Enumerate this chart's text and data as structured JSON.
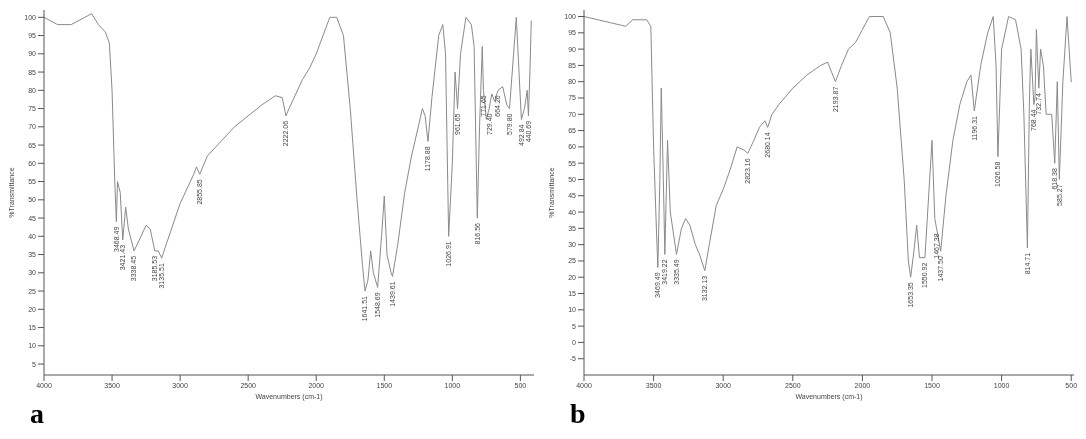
{
  "chart_data": [
    {
      "type": "line",
      "title": "a",
      "xlabel": "Wavenumbers (cm-1)",
      "ylabel": "%Transmittance",
      "color": "#8a8a8a",
      "x": [
        4000,
        3900,
        3800,
        3700,
        3650,
        3600,
        3550,
        3520,
        3500,
        3480,
        3468.49,
        3460,
        3440,
        3421.43,
        3400,
        3380,
        3338.45,
        3300,
        3250,
        3220,
        3185.53,
        3160,
        3135.51,
        3100,
        3000,
        2900,
        2880,
        2855.85,
        2800,
        2700,
        2600,
        2500,
        2400,
        2300,
        2250,
        2222.06,
        2200,
        2100,
        2050,
        2000,
        1950,
        1900,
        1850,
        1800,
        1750,
        1700,
        1660,
        1641.51,
        1620,
        1600,
        1580,
        1548.69,
        1520,
        1500,
        1480,
        1450,
        1439.61,
        1400,
        1350,
        1300,
        1250,
        1220,
        1200,
        1178.88,
        1150,
        1100,
        1070,
        1050,
        1026.91,
        1000,
        980,
        961.65,
        940,
        900,
        860,
        840,
        816.56,
        800,
        780,
        771.65,
        750,
        729.4,
        710,
        690,
        664.26,
        630,
        600,
        579.8,
        550,
        530,
        510,
        492.84,
        470,
        450,
        440.69,
        430,
        420
      ],
      "values": [
        100,
        98,
        98,
        100,
        101,
        98,
        96,
        93,
        80,
        55,
        44,
        55,
        52,
        39,
        48,
        42,
        36,
        39,
        43,
        42,
        36,
        36,
        34,
        38,
        49,
        57,
        59,
        57,
        62,
        66,
        70,
        73,
        76,
        78.5,
        78,
        73,
        75,
        83,
        86,
        90,
        95,
        100,
        100,
        95,
        75,
        50,
        32,
        25,
        28,
        36,
        30,
        26,
        40,
        51,
        35,
        30,
        29,
        38,
        52,
        62,
        70,
        75,
        73,
        66,
        78,
        95,
        98,
        90,
        40,
        60,
        85,
        75,
        90,
        100,
        98,
        92,
        45,
        70,
        92,
        80,
        72,
        75,
        79,
        77,
        80,
        81,
        76,
        75,
        90,
        100,
        85,
        72,
        75,
        80,
        73,
        85,
        99
      ],
      "xlim": [
        4000,
        400
      ],
      "ylim": [
        2,
        102
      ],
      "xticks": [
        4000,
        3500,
        3000,
        2500,
        2000,
        1500,
        1000,
        500
      ],
      "yticks": [
        5,
        10,
        15,
        20,
        25,
        30,
        35,
        40,
        45,
        50,
        55,
        60,
        65,
        70,
        75,
        80,
        85,
        90,
        95,
        100
      ],
      "annotations": [
        {
          "text": "3468.49",
          "x": 3468.49,
          "y": 44
        },
        {
          "text": "3421.43",
          "x": 3421.43,
          "y": 39
        },
        {
          "text": "3338.45",
          "x": 3338.45,
          "y": 36
        },
        {
          "text": "3185.53",
          "x": 3185.53,
          "y": 36
        },
        {
          "text": "3135.51",
          "x": 3135.51,
          "y": 34
        },
        {
          "text": "2855.85",
          "x": 2855.85,
          "y": 57
        },
        {
          "text": "2222.06",
          "x": 2222.06,
          "y": 73
        },
        {
          "text": "1641.51",
          "x": 1641.51,
          "y": 25
        },
        {
          "text": "1548.69",
          "x": 1548.69,
          "y": 26
        },
        {
          "text": "1439.61",
          "x": 1439.61,
          "y": 29
        },
        {
          "text": "1178.88",
          "x": 1178.88,
          "y": 66
        },
        {
          "text": "1026.91",
          "x": 1026.91,
          "y": 40
        },
        {
          "text": "961.65",
          "x": 961.65,
          "y": 75
        },
        {
          "text": "816.56",
          "x": 816.56,
          "y": 45
        },
        {
          "text": "771.65",
          "x": 771.65,
          "y": 80
        },
        {
          "text": "729.40",
          "x": 729.4,
          "y": 75
        },
        {
          "text": "664.26",
          "x": 664.26,
          "y": 80
        },
        {
          "text": "579.80",
          "x": 579.8,
          "y": 75
        },
        {
          "text": "492.84",
          "x": 492.84,
          "y": 72
        },
        {
          "text": "440.69",
          "x": 440.69,
          "y": 73
        }
      ]
    },
    {
      "type": "line",
      "title": "b",
      "xlabel": "Wavenumbers (cm-1)",
      "ylabel": "%Transmittance",
      "color": "#8a8a8a",
      "x": [
        4000,
        3900,
        3800,
        3700,
        3650,
        3550,
        3520,
        3500,
        3480,
        3469.49,
        3455,
        3445,
        3430,
        3419.22,
        3400,
        3380,
        3335.49,
        3300,
        3270,
        3240,
        3200,
        3170,
        3132.13,
        3100,
        3050,
        3000,
        2950,
        2900,
        2850,
        2823.16,
        2780,
        2740,
        2700,
        2680.14,
        2650,
        2600,
        2500,
        2400,
        2300,
        2250,
        2193.87,
        2150,
        2100,
        2050,
        2000,
        1950,
        1850,
        1800,
        1750,
        1700,
        1670,
        1653.35,
        1630,
        1610,
        1590,
        1550.92,
        1500,
        1480,
        1467.38,
        1437.5,
        1400,
        1350,
        1300,
        1250,
        1220,
        1196.31,
        1150,
        1100,
        1060,
        1040,
        1026.58,
        1000,
        950,
        900,
        860,
        840,
        814.71,
        800,
        790,
        768.44,
        760,
        750,
        740,
        732.74,
        720,
        700,
        680,
        640,
        618.38,
        600,
        585.27,
        560,
        530,
        500
      ],
      "values": [
        100,
        99,
        98,
        97,
        99,
        99,
        97,
        60,
        35,
        23,
        50,
        78,
        50,
        27,
        62,
        40,
        27,
        35,
        38,
        36,
        30,
        27,
        22,
        30,
        42,
        47,
        53,
        60,
        59,
        58,
        62,
        66,
        68,
        66,
        70,
        73,
        78,
        82,
        85,
        86,
        80,
        85,
        90,
        92,
        96,
        100,
        100,
        95,
        78,
        50,
        25,
        20,
        28,
        36,
        26,
        26,
        62,
        38,
        35,
        28,
        45,
        62,
        73,
        80,
        82,
        71,
        85,
        95,
        100,
        85,
        57,
        90,
        100,
        99,
        90,
        70,
        29,
        75,
        90,
        73,
        75,
        96,
        85,
        78,
        90,
        85,
        70,
        70,
        55,
        80,
        50,
        80,
        100,
        80
      ],
      "xlim": [
        4000,
        480
      ],
      "ylim": [
        -10,
        102
      ],
      "xticks": [
        4000,
        3500,
        3000,
        2500,
        2000,
        1500,
        1000,
        500
      ],
      "yticks": [
        -5,
        0,
        5,
        10,
        15,
        20,
        25,
        30,
        35,
        40,
        45,
        50,
        55,
        60,
        65,
        70,
        75,
        80,
        85,
        90,
        95,
        100
      ],
      "annotations": [
        {
          "text": "3469.49",
          "x": 3469.49,
          "y": 23
        },
        {
          "text": "3419.22",
          "x": 3419.22,
          "y": 27
        },
        {
          "text": "3335.49",
          "x": 3335.49,
          "y": 27
        },
        {
          "text": "3132.13",
          "x": 3132.13,
          "y": 22
        },
        {
          "text": "2823.16",
          "x": 2823.16,
          "y": 58
        },
        {
          "text": "2680.14",
          "x": 2680.14,
          "y": 66
        },
        {
          "text": "2193.87",
          "x": 2193.87,
          "y": 80
        },
        {
          "text": "1653.35",
          "x": 1653.35,
          "y": 20
        },
        {
          "text": "1550.92",
          "x": 1550.92,
          "y": 26
        },
        {
          "text": "1467.38",
          "x": 1467.38,
          "y": 35
        },
        {
          "text": "1437.50",
          "x": 1437.5,
          "y": 28
        },
        {
          "text": "1196.31",
          "x": 1196.31,
          "y": 71
        },
        {
          "text": "1026.58",
          "x": 1026.58,
          "y": 57
        },
        {
          "text": "814.71",
          "x": 814.71,
          "y": 29
        },
        {
          "text": "768.44",
          "x": 768.44,
          "y": 73
        },
        {
          "text": "732.74",
          "x": 732.74,
          "y": 78
        },
        {
          "text": "618.38",
          "x": 618.38,
          "y": 55
        },
        {
          "text": "585.27",
          "x": 585.27,
          "y": 50
        }
      ]
    }
  ]
}
